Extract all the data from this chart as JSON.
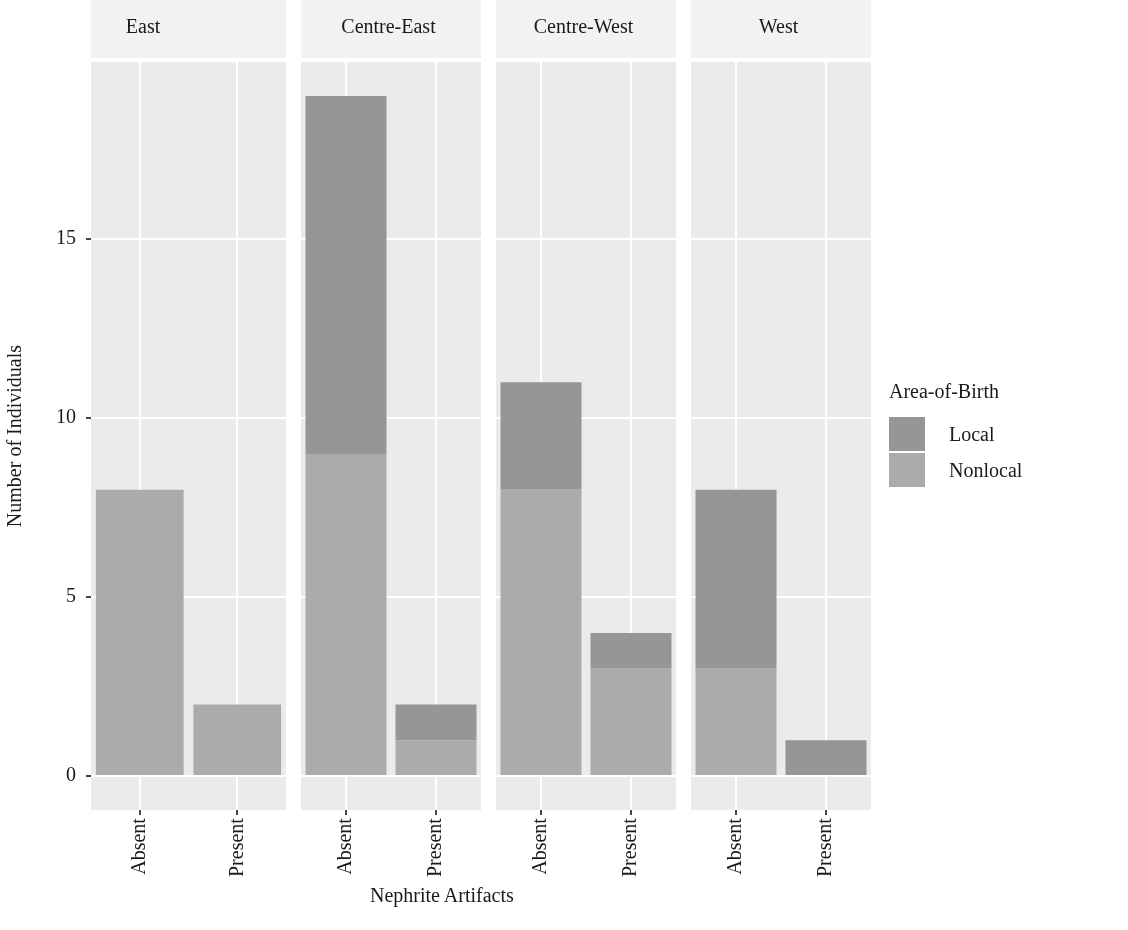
{
  "chart_data": [
    {
      "type": "bar",
      "title": "East",
      "ylabel": "Number of Individuals",
      "categories": [
        "Absent",
        "Present"
      ],
      "stacked": true,
      "grid": true,
      "ylim": [
        -0.95,
        19.95
      ],
      "yticks": [
        0,
        5,
        10,
        15
      ],
      "series": [
        {
          "color": "#ababab",
          "values": [
            8,
            2
          ]
        },
        {
          "color": "#969696",
          "values": [
            0,
            0
          ]
        }
      ]
    },
    {
      "type": "bar",
      "title": "Centre-East",
      "xlabel": "Nephrite Artifacts",
      "categories": [
        "Absent",
        "Present"
      ],
      "stacked": true,
      "grid": true,
      "tick_labels": "x",
      "ylim": [
        -0.95,
        19.95
      ],
      "yticks": [
        0,
        5,
        10,
        15
      ],
      "series": [
        {
          "color": "#ababab",
          "values": [
            9,
            1
          ]
        },
        {
          "color": "#969696",
          "values": [
            10,
            1
          ]
        }
      ]
    },
    {
      "type": "bar",
      "title": "Centre-West",
      "categories": [
        "Absent",
        "Present"
      ],
      "stacked": true,
      "grid": true,
      "tick_labels": "x",
      "ylim": [
        -0.95,
        19.95
      ],
      "yticks": [
        0,
        5,
        10,
        15
      ],
      "series": [
        {
          "color": "#ababab",
          "values": [
            8,
            3
          ]
        },
        {
          "color": "#969696",
          "values": [
            3,
            1
          ]
        }
      ]
    },
    {
      "type": "bar",
      "title": "West",
      "categories": [
        "Absent",
        "Present"
      ],
      "stacked": true,
      "grid": true,
      "tick_labels": "x",
      "ylim": [
        -0.95,
        19.95
      ],
      "yticks": [
        0,
        5,
        10,
        15
      ],
      "legend": "right",
      "legend_title": "Area-of-Birth",
      "series": [
        {
          "name": "Nonlocal",
          "color": "#ababab",
          "values": [
            3,
            0
          ]
        },
        {
          "name": "Local",
          "color": "#969696",
          "values": [
            5,
            1
          ]
        }
      ]
    }
  ]
}
